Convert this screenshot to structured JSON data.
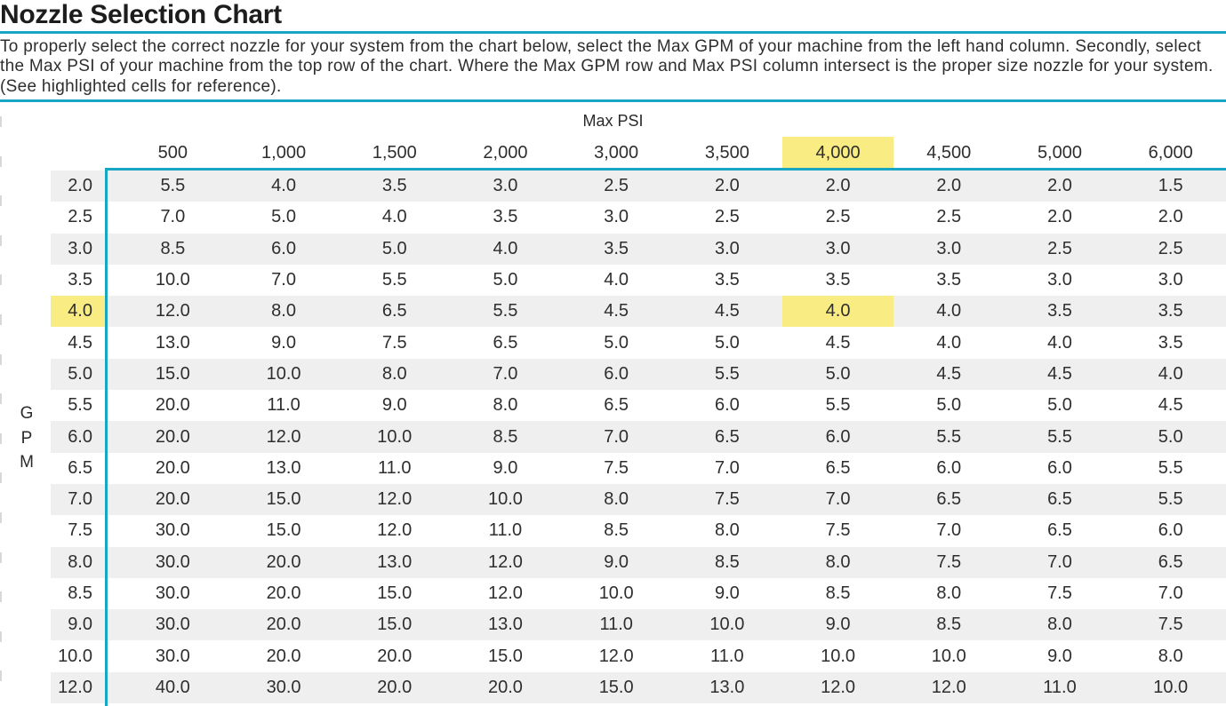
{
  "title": "Nozzle Selection Chart",
  "description": "To properly select the correct nozzle for your system from the chart below, select the Max GPM of your machine from the left hand column. Secondly, select the Max PSI of your machine from the top row of the chart. Where the Max GPM row and Max PSI column intersect is the proper size nozzle for your system. (See highlighted cells for reference).",
  "colors": {
    "accent_teal": "#18a6c4",
    "highlight_yellow": "#f8ec83",
    "stripe_gray": "#efefef",
    "text": "#2e2e2e"
  },
  "chart_data": {
    "type": "table",
    "title": "Nozzle Selection Chart",
    "column_axis_label": "Max PSI",
    "row_axis_label": "GPM",
    "columns": [
      "500",
      "1,000",
      "1,500",
      "2,000",
      "3,000",
      "3,500",
      "4,000",
      "4,500",
      "5,000",
      "6,000"
    ],
    "row_labels": [
      "2.0",
      "2.5",
      "3.0",
      "3.5",
      "4.0",
      "4.5",
      "5.0",
      "5.5",
      "6.0",
      "6.5",
      "7.0",
      "7.5",
      "8.0",
      "8.5",
      "9.0",
      "10.0",
      "12.0"
    ],
    "rows": [
      [
        "5.5",
        "4.0",
        "3.5",
        "3.0",
        "2.5",
        "2.0",
        "2.0",
        "2.0",
        "2.0",
        "1.5"
      ],
      [
        "7.0",
        "5.0",
        "4.0",
        "3.5",
        "3.0",
        "2.5",
        "2.5",
        "2.5",
        "2.0",
        "2.0"
      ],
      [
        "8.5",
        "6.0",
        "5.0",
        "4.0",
        "3.5",
        "3.0",
        "3.0",
        "3.0",
        "2.5",
        "2.5"
      ],
      [
        "10.0",
        "7.0",
        "5.5",
        "5.0",
        "4.0",
        "3.5",
        "3.5",
        "3.5",
        "3.0",
        "3.0"
      ],
      [
        "12.0",
        "8.0",
        "6.5",
        "5.5",
        "4.5",
        "4.5",
        "4.0",
        "4.0",
        "3.5",
        "3.5"
      ],
      [
        "13.0",
        "9.0",
        "7.5",
        "6.5",
        "5.0",
        "5.0",
        "4.5",
        "4.0",
        "4.0",
        "3.5"
      ],
      [
        "15.0",
        "10.0",
        "8.0",
        "7.0",
        "6.0",
        "5.5",
        "5.0",
        "4.5",
        "4.5",
        "4.0"
      ],
      [
        "20.0",
        "11.0",
        "9.0",
        "8.0",
        "6.5",
        "6.0",
        "5.5",
        "5.0",
        "5.0",
        "4.5"
      ],
      [
        "20.0",
        "12.0",
        "10.0",
        "8.5",
        "7.0",
        "6.5",
        "6.0",
        "5.5",
        "5.5",
        "5.0"
      ],
      [
        "20.0",
        "13.0",
        "11.0",
        "9.0",
        "7.5",
        "7.0",
        "6.5",
        "6.0",
        "6.0",
        "5.5"
      ],
      [
        "20.0",
        "15.0",
        "12.0",
        "10.0",
        "8.0",
        "7.5",
        "7.0",
        "6.5",
        "6.5",
        "5.5"
      ],
      [
        "30.0",
        "15.0",
        "12.0",
        "11.0",
        "8.5",
        "8.0",
        "7.5",
        "7.0",
        "6.5",
        "6.0"
      ],
      [
        "30.0",
        "20.0",
        "13.0",
        "12.0",
        "9.0",
        "8.5",
        "8.0",
        "7.5",
        "7.0",
        "6.5"
      ],
      [
        "30.0",
        "20.0",
        "15.0",
        "12.0",
        "10.0",
        "9.0",
        "8.5",
        "8.0",
        "7.5",
        "7.0"
      ],
      [
        "30.0",
        "20.0",
        "15.0",
        "13.0",
        "11.0",
        "10.0",
        "9.0",
        "8.5",
        "8.0",
        "7.5"
      ],
      [
        "30.0",
        "20.0",
        "20.0",
        "15.0",
        "12.0",
        "11.0",
        "10.0",
        "10.0",
        "9.0",
        "8.0"
      ],
      [
        "40.0",
        "30.0",
        "20.0",
        "20.0",
        "15.0",
        "13.0",
        "12.0",
        "12.0",
        "11.0",
        "10.0"
      ]
    ],
    "highlight": {
      "column": "4,000",
      "row": "4.0",
      "cell_value": "4.0"
    },
    "layout_hints": {
      "striped_rows": "odd rows gray",
      "legend": "none",
      "grid": "off"
    }
  }
}
